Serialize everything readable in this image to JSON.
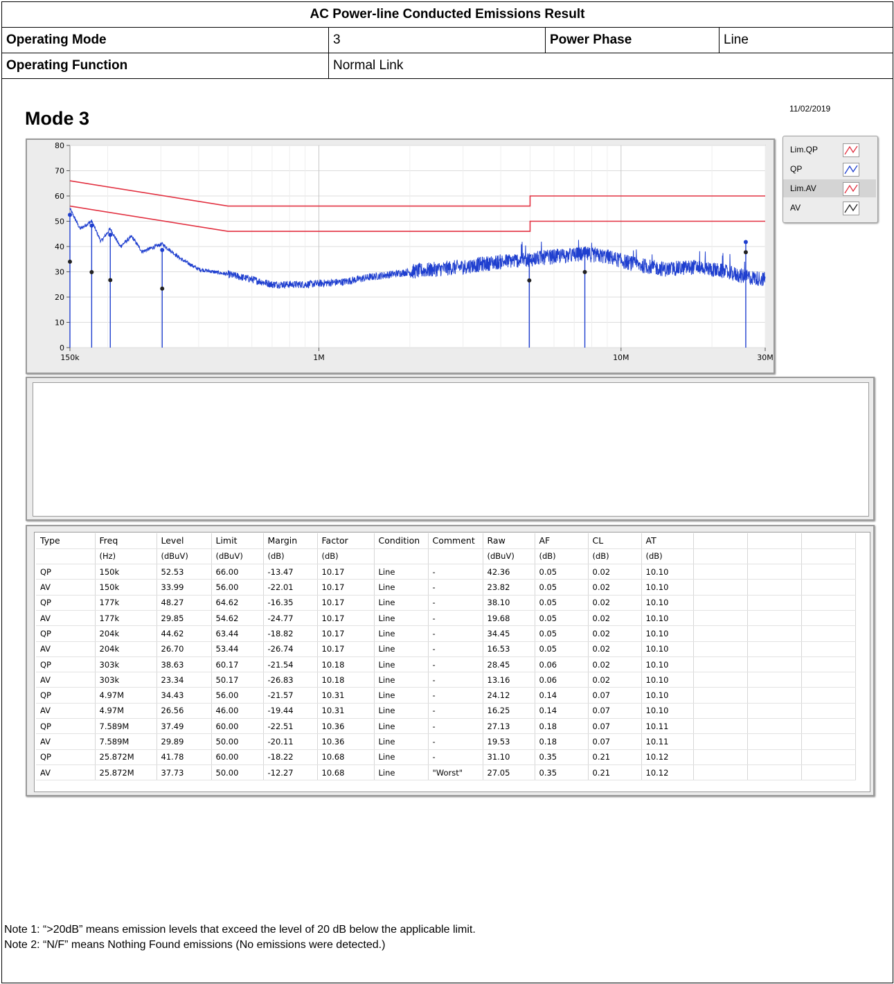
{
  "header": {
    "title": "AC Power-line Conducted Emissions Result",
    "operating_mode_label": "Operating Mode",
    "operating_mode_value": "3",
    "power_phase_label": "Power Phase",
    "power_phase_value": "Line",
    "operating_function_label": "Operating Function",
    "operating_function_value": "Normal Link"
  },
  "graph": {
    "title": "Mode 3",
    "date": "11/02/2019"
  },
  "legend": [
    {
      "name": "Lim.QP",
      "color": "#e23040",
      "selected": false
    },
    {
      "name": "QP",
      "color": "#1f3fcf",
      "selected": false
    },
    {
      "name": "Lim.AV",
      "color": "#e23040",
      "selected": true
    },
    {
      "name": "AV",
      "color": "#222222",
      "selected": false
    }
  ],
  "chart_data": {
    "type": "line",
    "xscale": "log",
    "xlim": [
      150000,
      30000000
    ],
    "ylim": [
      0,
      80
    ],
    "x_ticks": [
      "150k",
      "1M",
      "10M",
      "30M"
    ],
    "y_ticks": [
      0,
      10,
      20,
      30,
      40,
      50,
      60,
      70,
      80
    ],
    "limit_qp": [
      [
        150000,
        66
      ],
      [
        500000,
        56
      ],
      [
        5000000,
        56
      ],
      [
        5000000,
        60
      ],
      [
        30000000,
        60
      ]
    ],
    "limit_av": [
      [
        150000,
        56
      ],
      [
        500000,
        46
      ],
      [
        5000000,
        46
      ],
      [
        5000000,
        50
      ],
      [
        30000000,
        50
      ]
    ],
    "spectrum_envelope": [
      [
        150000,
        55
      ],
      [
        162000,
        47
      ],
      [
        177000,
        50
      ],
      [
        190000,
        42
      ],
      [
        204000,
        47
      ],
      [
        220000,
        40
      ],
      [
        240000,
        44
      ],
      [
        260000,
        38
      ],
      [
        303000,
        41
      ],
      [
        350000,
        35
      ],
      [
        400000,
        31
      ],
      [
        500000,
        29
      ],
      [
        600000,
        27
      ],
      [
        700000,
        25
      ],
      [
        900000,
        25
      ],
      [
        1200000,
        26
      ],
      [
        1500000,
        28
      ],
      [
        2000000,
        30
      ],
      [
        3000000,
        32
      ],
      [
        4000000,
        34
      ],
      [
        5000000,
        35
      ],
      [
        6000000,
        36
      ],
      [
        7589000,
        37
      ],
      [
        9000000,
        36
      ],
      [
        11000000,
        33
      ],
      [
        14000000,
        31
      ],
      [
        18000000,
        32
      ],
      [
        22000000,
        30
      ],
      [
        25872000,
        28
      ],
      [
        30000000,
        27
      ]
    ],
    "qp_markers": [
      [
        150000,
        52.53
      ],
      [
        177000,
        48.27
      ],
      [
        204000,
        44.62
      ],
      [
        303000,
        38.63
      ],
      [
        4970000,
        34.43
      ],
      [
        7589000,
        37.49
      ],
      [
        25872000,
        41.78
      ]
    ],
    "av_markers": [
      [
        150000,
        33.99
      ],
      [
        177000,
        29.85
      ],
      [
        204000,
        26.7
      ],
      [
        303000,
        23.34
      ],
      [
        4970000,
        26.56
      ],
      [
        7589000,
        29.89
      ],
      [
        25872000,
        37.73
      ]
    ]
  },
  "results": {
    "headers": [
      "Type",
      "Freq",
      "Level",
      "Limit",
      "Margin",
      "Factor",
      "Condition",
      "Comment",
      "Raw",
      "AF",
      "CL",
      "AT"
    ],
    "units": [
      "",
      "(Hz)",
      "(dBuV)",
      "(dBuV)",
      "(dB)",
      "(dB)",
      "",
      "",
      "(dBuV)",
      "(dB)",
      "(dB)",
      "(dB)"
    ],
    "rows": [
      [
        "QP",
        "150k",
        "52.53",
        "66.00",
        "-13.47",
        "10.17",
        "Line",
        "-",
        "42.36",
        "0.05",
        "0.02",
        "10.10"
      ],
      [
        "AV",
        "150k",
        "33.99",
        "56.00",
        "-22.01",
        "10.17",
        "Line",
        "-",
        "23.82",
        "0.05",
        "0.02",
        "10.10"
      ],
      [
        "QP",
        "177k",
        "48.27",
        "64.62",
        "-16.35",
        "10.17",
        "Line",
        "-",
        "38.10",
        "0.05",
        "0.02",
        "10.10"
      ],
      [
        "AV",
        "177k",
        "29.85",
        "54.62",
        "-24.77",
        "10.17",
        "Line",
        "-",
        "19.68",
        "0.05",
        "0.02",
        "10.10"
      ],
      [
        "QP",
        "204k",
        "44.62",
        "63.44",
        "-18.82",
        "10.17",
        "Line",
        "-",
        "34.45",
        "0.05",
        "0.02",
        "10.10"
      ],
      [
        "AV",
        "204k",
        "26.70",
        "53.44",
        "-26.74",
        "10.17",
        "Line",
        "-",
        "16.53",
        "0.05",
        "0.02",
        "10.10"
      ],
      [
        "QP",
        "303k",
        "38.63",
        "60.17",
        "-21.54",
        "10.18",
        "Line",
        "-",
        "28.45",
        "0.06",
        "0.02",
        "10.10"
      ],
      [
        "AV",
        "303k",
        "23.34",
        "50.17",
        "-26.83",
        "10.18",
        "Line",
        "-",
        "13.16",
        "0.06",
        "0.02",
        "10.10"
      ],
      [
        "QP",
        "4.97M",
        "34.43",
        "56.00",
        "-21.57",
        "10.31",
        "Line",
        "-",
        "24.12",
        "0.14",
        "0.07",
        "10.10"
      ],
      [
        "AV",
        "4.97M",
        "26.56",
        "46.00",
        "-19.44",
        "10.31",
        "Line",
        "-",
        "16.25",
        "0.14",
        "0.07",
        "10.10"
      ],
      [
        "QP",
        "7.589M",
        "37.49",
        "60.00",
        "-22.51",
        "10.36",
        "Line",
        "-",
        "27.13",
        "0.18",
        "0.07",
        "10.11"
      ],
      [
        "AV",
        "7.589M",
        "29.89",
        "50.00",
        "-20.11",
        "10.36",
        "Line",
        "-",
        "19.53",
        "0.18",
        "0.07",
        "10.11"
      ],
      [
        "QP",
        "25.872M",
        "41.78",
        "60.00",
        "-18.22",
        "10.68",
        "Line",
        "-",
        "31.10",
        "0.35",
        "0.21",
        "10.12"
      ],
      [
        "AV",
        "25.872M",
        "37.73",
        "50.00",
        "-12.27",
        "10.68",
        "Line",
        "\"Worst\"",
        "27.05",
        "0.35",
        "0.21",
        "10.12"
      ]
    ]
  },
  "notes": {
    "note1": "Note 1: “>20dB” means emission levels that exceed the level of 20 dB below the applicable limit.",
    "note2": "Note 2: “N/F” means Nothing Found emissions (No emissions were detected.)"
  }
}
